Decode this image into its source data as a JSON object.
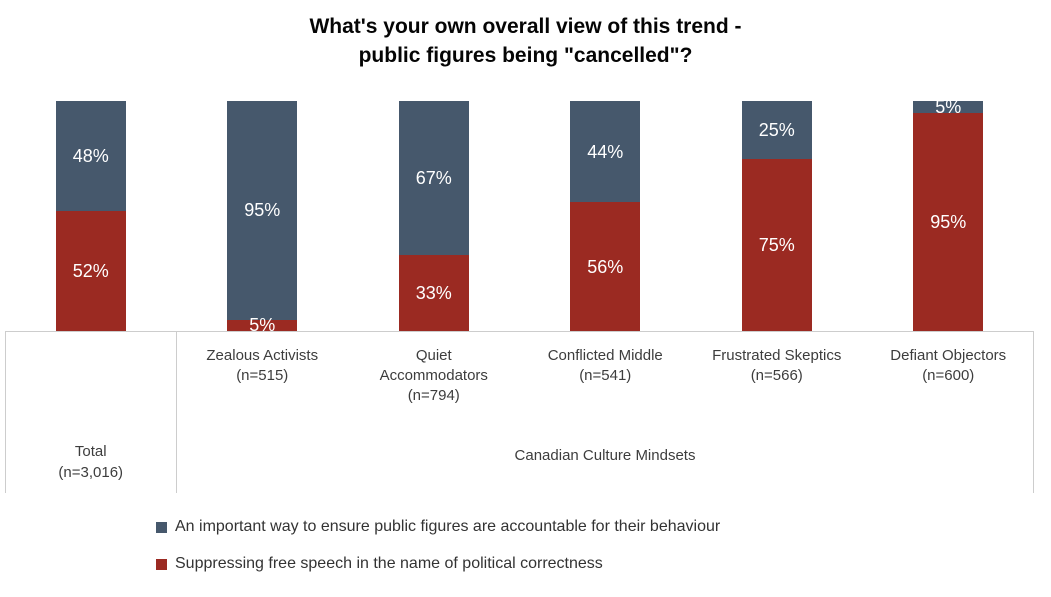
{
  "chart_data": {
    "type": "bar",
    "stacked": true,
    "orientation": "vertical",
    "title": "What's your own overall view of this trend -\npublic figures being \"cancelled\"?",
    "categories": [
      "Total\n(n=3,016)",
      "Zealous Activists\n(n=515)",
      "Quiet\nAccommodators\n(n=794)",
      "Conflicted Middle\n(n=541)",
      "Frustrated Skeptics\n(n=566)",
      "Defiant Objectors\n(n=600)"
    ],
    "category_group_label": "Canadian Culture Mindsets",
    "series": [
      {
        "name": "An important way to ensure public figures are accountable for their behaviour",
        "color": "#46586C",
        "position": "top",
        "values": [
          48,
          95,
          67,
          44,
          25,
          5
        ]
      },
      {
        "name": "Suppressing free speech in the name of political correctness",
        "color": "#9B2A22",
        "position": "bottom",
        "values": [
          52,
          5,
          33,
          56,
          75,
          95
        ]
      }
    ],
    "value_suffix": "%",
    "ylim": [
      0,
      100
    ],
    "data_labels": true,
    "data_label_color": "#FFFFFF",
    "legend_position": "bottom",
    "grid": false,
    "axis_border_color": "#CDCDCD"
  }
}
